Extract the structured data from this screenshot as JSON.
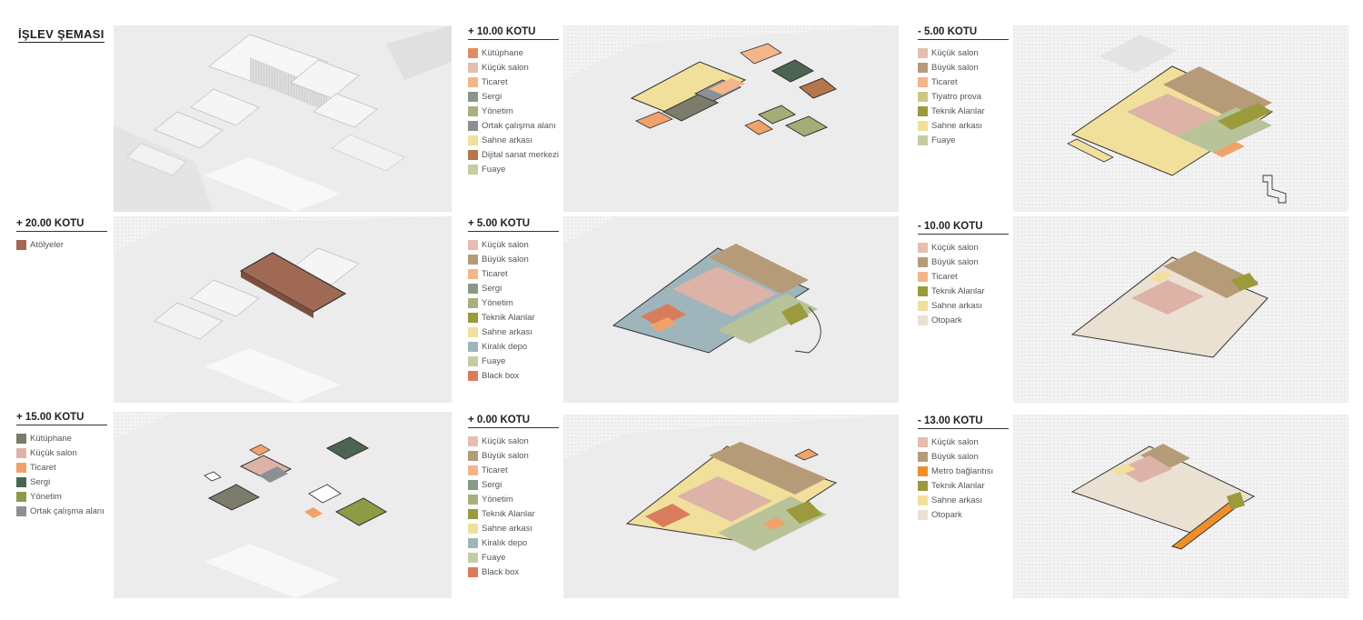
{
  "title": "İŞLEV ŞEMASI",
  "colors": {
    "kutuphane": "#7d7b6b",
    "kucuk_salon": "#dcb3a6",
    "buyuk_salon": "#b69b78",
    "ticaret": "#f0a26a",
    "sergi_dark": "#4c6552",
    "sergi": "#8d9c87",
    "yonetim": "#a3ae77",
    "yonetim_dark": "#8f9a45",
    "ortak": "#8b9096",
    "sahne": "#f1df9c",
    "dijital": "#b5764a",
    "fuaye": "#b8c39a",
    "atolye": "#9f6953",
    "teknik": "#9b9a3c",
    "kiralik": "#9eb5bb",
    "blackbox": "#d97c5d",
    "tiyatro": "#c9c785",
    "otopark": "#ebe1d3",
    "metro": "#ef8f2a"
  },
  "legends": [
    {
      "key": "p10",
      "title": "+ 10.00 KOTU",
      "items": [
        {
          "label": "Kütüphane",
          "color": "#e08c63"
        },
        {
          "label": "Küçük salon",
          "color": "#e6bdb0"
        },
        {
          "label": "Ticaret",
          "color": "#f4b58a"
        },
        {
          "label": "Sergi",
          "color": "#869a85"
        },
        {
          "label": "Yönetim",
          "color": "#a8b07d"
        },
        {
          "label": "Ortak çalışma alanı",
          "color": "#8b9096"
        },
        {
          "label": "Sahne arkası",
          "color": "#f1df9c"
        },
        {
          "label": "Dijital sanat merkezi",
          "color": "#b5764a"
        },
        {
          "label": "Fuaye",
          "color": "#c4cca4"
        }
      ]
    },
    {
      "key": "m5",
      "title": "- 5.00 KOTU",
      "items": [
        {
          "label": "Küçük salon",
          "color": "#e6bdb0"
        },
        {
          "label": "Büyük salon",
          "color": "#b69b78"
        },
        {
          "label": "Ticaret",
          "color": "#f4b58a"
        },
        {
          "label": "Tiyatro prova",
          "color": "#c9c785"
        },
        {
          "label": "Teknik Alanlar",
          "color": "#9b9a3c"
        },
        {
          "label": "Sahne arkası",
          "color": "#f1df9c"
        },
        {
          "label": "Fuaye",
          "color": "#c4cca4"
        }
      ]
    },
    {
      "key": "p20",
      "title": "+ 20.00 KOTU",
      "items": [
        {
          "label": "Atölyeler",
          "color": "#9f6953"
        }
      ]
    },
    {
      "key": "p5",
      "title": "+ 5.00 KOTU",
      "items": [
        {
          "label": "Küçük salon",
          "color": "#e6bdb0"
        },
        {
          "label": "Büyük salon",
          "color": "#b69b78"
        },
        {
          "label": "Ticaret",
          "color": "#f4b58a"
        },
        {
          "label": "Sergi",
          "color": "#869a85"
        },
        {
          "label": "Yönetim",
          "color": "#a8b07d"
        },
        {
          "label": "Teknik Alanlar",
          "color": "#9b9a3c"
        },
        {
          "label": "Sahne arkası",
          "color": "#f1df9c"
        },
        {
          "label": "Kiralık depo",
          "color": "#9eb5bb"
        },
        {
          "label": "Fuaye",
          "color": "#c4cca4"
        },
        {
          "label": "Black box",
          "color": "#d97c5d"
        }
      ]
    },
    {
      "key": "m10",
      "title": "- 10.00 KOTU",
      "items": [
        {
          "label": "Küçük salon",
          "color": "#e6bdb0"
        },
        {
          "label": "Büyük salon",
          "color": "#b69b78"
        },
        {
          "label": "Ticaret",
          "color": "#f4b58a"
        },
        {
          "label": "Teknik Alanlar",
          "color": "#9b9a3c"
        },
        {
          "label": "Sahne arkası",
          "color": "#f1df9c"
        },
        {
          "label": "Otopark",
          "color": "#ebe1d3"
        }
      ]
    },
    {
      "key": "p15",
      "title": "+ 15.00 KOTU",
      "items": [
        {
          "label": "Kütüphane",
          "color": "#7d7b6b"
        },
        {
          "label": "Küçük salon",
          "color": "#dcb3a6"
        },
        {
          "label": "Ticaret",
          "color": "#f0a26a"
        },
        {
          "label": "Sergi",
          "color": "#4c6552"
        },
        {
          "label": "Yönetim",
          "color": "#8f9a45"
        },
        {
          "label": "Ortak çalışma alanı",
          "color": "#8b9096"
        }
      ]
    },
    {
      "key": "p0",
      "title": "+ 0.00 KOTU",
      "items": [
        {
          "label": "Küçük salon",
          "color": "#e6bdb0"
        },
        {
          "label": "Büyük salon",
          "color": "#b69b78"
        },
        {
          "label": "Ticaret",
          "color": "#f4b58a"
        },
        {
          "label": "Sergi",
          "color": "#869a85"
        },
        {
          "label": "Yönetim",
          "color": "#a8b07d"
        },
        {
          "label": "Teknik Alanlar",
          "color": "#9b9a3c"
        },
        {
          "label": "Sahne arkası",
          "color": "#f1df9c"
        },
        {
          "label": "Kiralık depo",
          "color": "#9eb5bb"
        },
        {
          "label": "Fuaye",
          "color": "#c4cca4"
        },
        {
          "label": "Black box",
          "color": "#d97c5d"
        }
      ]
    },
    {
      "key": "m13",
      "title": "- 13.00 KOTU",
      "items": [
        {
          "label": "Küçük salon",
          "color": "#e6bdb0"
        },
        {
          "label": "Büyük salon",
          "color": "#b69b78"
        },
        {
          "label": "Metro bağlantısı",
          "color": "#ef8f2a"
        },
        {
          "label": "Teknik Alanlar",
          "color": "#9b9a3c"
        },
        {
          "label": "Sahne arkası",
          "color": "#f1df9c"
        },
        {
          "label": "Otopark",
          "color": "#ebe1d3"
        }
      ]
    }
  ]
}
